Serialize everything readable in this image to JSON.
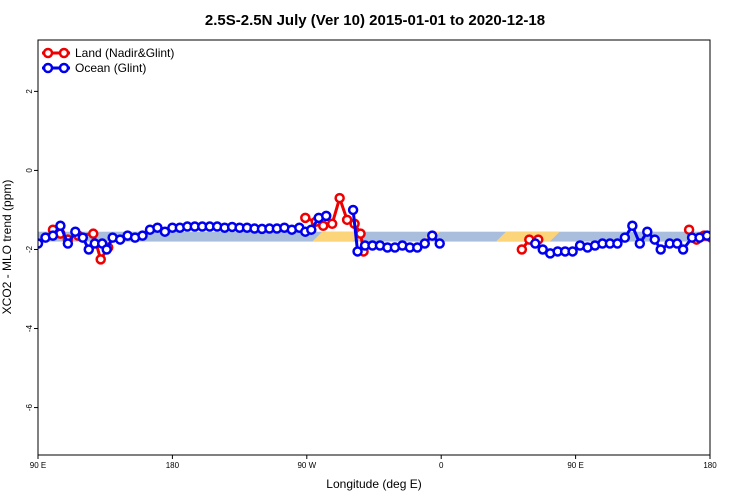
{
  "chart_data": {
    "type": "line",
    "title": "2.5S-2.5N July (Ver 10)   2015-01-01 to 2020-12-18",
    "xlabel": "Longitude (deg E)",
    "ylabel": "XCO2 - MLO trend (ppm)",
    "x_ticks": [
      {
        "value": 90,
        "label": "90 E"
      },
      {
        "value": 180,
        "label": "180"
      },
      {
        "value": 270,
        "label": "90 W"
      },
      {
        "value": 360,
        "label": "0"
      },
      {
        "value": 450,
        "label": "90 E"
      },
      {
        "value": 540,
        "label": "180"
      }
    ],
    "y_ticks": [
      {
        "value": 2,
        "label": "2"
      },
      {
        "value": 0,
        "label": "0"
      },
      {
        "value": -2,
        "label": "-2"
      },
      {
        "value": -4,
        "label": "-4"
      },
      {
        "value": -6,
        "label": "-6"
      }
    ],
    "xlim": [
      90,
      540
    ],
    "ylim": [
      -7.2,
      3.3
    ],
    "legend_position": "top-left",
    "band": {
      "ymin": -1.8,
      "ymax": -1.55,
      "ocean_color": "#a8bedc",
      "land_color": "#fcd57a",
      "land_segments": [
        [
          277,
          304
        ],
        [
          350,
          356
        ],
        [
          400,
          436
        ]
      ]
    },
    "series": [
      {
        "name": "Land (Nadir&Glint)",
        "color": "#ee0000",
        "segments": [
          [
            [
              100,
              -1.5
            ],
            [
              105,
              -1.6
            ],
            [
              110,
              -1.75
            ]
          ],
          [
            [
              117,
              -1.65
            ],
            [
              127,
              -1.6
            ],
            [
              132,
              -2.25
            ],
            [
              137,
              -1.95
            ]
          ],
          [
            [
              269,
              -1.2
            ],
            [
              276,
              -1.3
            ],
            [
              281,
              -1.4
            ],
            [
              287,
              -1.35
            ],
            [
              292,
              -0.7
            ],
            [
              297,
              -1.25
            ],
            [
              302,
              -1.35
            ],
            [
              306,
              -1.6
            ],
            [
              308,
              -2.05
            ]
          ],
          [
            [
              414,
              -2.0
            ],
            [
              419,
              -1.75
            ],
            [
              425,
              -1.75
            ]
          ],
          [
            [
              526,
              -1.5
            ],
            [
              531,
              -1.75
            ],
            [
              536,
              -1.65
            ],
            [
              541,
              -1.7
            ]
          ],
          [
            [
              552,
              -1.65
            ],
            [
              562,
              -1.6
            ],
            [
              567,
              -2.25
            ],
            [
              572,
              -1.95
            ]
          ]
        ]
      },
      {
        "name": "Ocean (Glint)",
        "color": "#0000ee",
        "segments": [
          [
            [
              90,
              -1.85
            ],
            [
              95,
              -1.7
            ],
            [
              100,
              -1.65
            ],
            [
              105,
              -1.4
            ],
            [
              110,
              -1.85
            ],
            [
              115,
              -1.55
            ],
            [
              120,
              -1.7
            ],
            [
              124,
              -2.0
            ],
            [
              128,
              -1.85
            ],
            [
              133,
              -1.85
            ],
            [
              136,
              -2.0
            ],
            [
              140,
              -1.7
            ],
            [
              145,
              -1.75
            ],
            [
              150,
              -1.65
            ],
            [
              155,
              -1.7
            ],
            [
              160,
              -1.65
            ],
            [
              165,
              -1.5
            ],
            [
              170,
              -1.45
            ],
            [
              175,
              -1.55
            ],
            [
              180,
              -1.45
            ],
            [
              185,
              -1.45
            ],
            [
              190,
              -1.42
            ],
            [
              195,
              -1.42
            ],
            [
              200,
              -1.42
            ],
            [
              205,
              -1.42
            ],
            [
              210,
              -1.42
            ],
            [
              215,
              -1.45
            ],
            [
              220,
              -1.43
            ],
            [
              225,
              -1.45
            ],
            [
              230,
              -1.45
            ],
            [
              235,
              -1.47
            ],
            [
              240,
              -1.48
            ],
            [
              245,
              -1.47
            ],
            [
              250,
              -1.47
            ],
            [
              255,
              -1.45
            ],
            [
              260,
              -1.5
            ],
            [
              265,
              -1.45
            ],
            [
              269,
              -1.55
            ],
            [
              273,
              -1.5
            ],
            [
              278,
              -1.2
            ],
            [
              283,
              -1.15
            ]
          ],
          [
            [
              301,
              -1.0
            ],
            [
              304,
              -2.05
            ],
            [
              309,
              -1.9
            ],
            [
              314,
              -1.9
            ],
            [
              319,
              -1.9
            ],
            [
              324,
              -1.95
            ],
            [
              329,
              -1.95
            ],
            [
              334,
              -1.9
            ],
            [
              339,
              -1.95
            ],
            [
              344,
              -1.95
            ],
            [
              349,
              -1.85
            ],
            [
              354,
              -1.65
            ],
            [
              359,
              -1.85
            ]
          ],
          [
            [
              423,
              -1.85
            ],
            [
              428,
              -2.0
            ],
            [
              433,
              -2.1
            ],
            [
              438,
              -2.05
            ],
            [
              443,
              -2.05
            ],
            [
              448,
              -2.05
            ],
            [
              453,
              -1.9
            ],
            [
              458,
              -1.95
            ],
            [
              463,
              -1.9
            ],
            [
              468,
              -1.85
            ],
            [
              473,
              -1.85
            ],
            [
              478,
              -1.85
            ],
            [
              483,
              -1.7
            ],
            [
              488,
              -1.4
            ],
            [
              493,
              -1.85
            ],
            [
              498,
              -1.55
            ],
            [
              503,
              -1.75
            ],
            [
              507,
              -2.0
            ],
            [
              513,
              -1.85
            ],
            [
              518,
              -1.85
            ],
            [
              522,
              -2.0
            ],
            [
              528,
              -1.7
            ],
            [
              533,
              -1.7
            ],
            [
              538,
              -1.65
            ],
            [
              543,
              -1.7
            ],
            [
              548,
              -1.6
            ],
            [
              553,
              -1.5
            ],
            [
              558,
              -1.4
            ],
            [
              563,
              -1.45
            ],
            [
              568,
              -1.45
            ],
            [
              573,
              -1.5
            ],
            [
              578,
              -1.4
            ]
          ]
        ]
      }
    ]
  }
}
